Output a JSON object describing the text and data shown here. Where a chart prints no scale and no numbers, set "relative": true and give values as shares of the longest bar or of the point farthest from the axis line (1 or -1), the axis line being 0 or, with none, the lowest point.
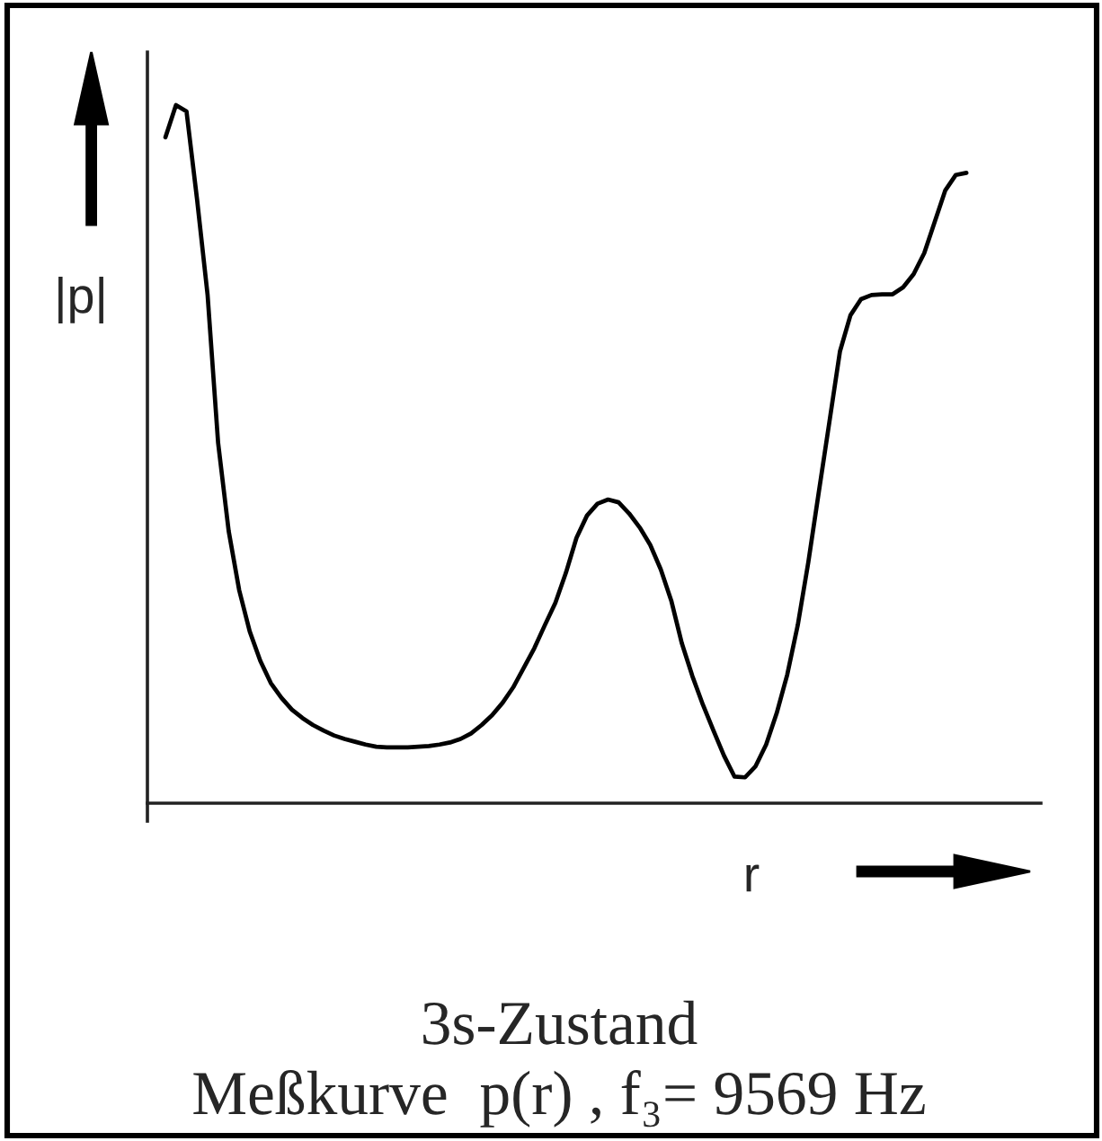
{
  "chart_data": {
    "type": "line",
    "relative": true,
    "title": "3s-Zustand",
    "subtitle": "Meßkurve  p(r) , f₃= 9569 Hz",
    "xlabel": "r",
    "ylabel": "|p|",
    "line_style": "solid",
    "categories": [
      null,
      null,
      null,
      null,
      null,
      null,
      null,
      null,
      null,
      null,
      null,
      null,
      null,
      null,
      null,
      null,
      null,
      null,
      null,
      null,
      null,
      null,
      null,
      null,
      null,
      null,
      null,
      null,
      null,
      null,
      null,
      null,
      null,
      null,
      null,
      null,
      null,
      null,
      null,
      null,
      null,
      null,
      null,
      null,
      null,
      null,
      null,
      null,
      null,
      null,
      null,
      null,
      null,
      null,
      null,
      null,
      null,
      null,
      null,
      null,
      null,
      null,
      null,
      null,
      null,
      null,
      null,
      null,
      null,
      null,
      null,
      null,
      null,
      null,
      null,
      null,
      null
    ],
    "series": [
      {
        "color": "#000000",
        "values": [
          0.954,
          1.0,
          0.991,
          0.865,
          0.728,
          0.516,
          0.39,
          0.305,
          0.246,
          0.204,
          0.172,
          0.151,
          0.134,
          0.122,
          0.112,
          0.104,
          0.097,
          0.092,
          0.088,
          0.084,
          0.081,
          0.08,
          0.08,
          0.08,
          0.081,
          0.082,
          0.084,
          0.087,
          0.092,
          0.1,
          0.112,
          0.126,
          0.144,
          0.166,
          0.194,
          0.222,
          0.255,
          0.287,
          0.33,
          0.38,
          0.412,
          0.429,
          0.435,
          0.431,
          0.415,
          0.395,
          0.37,
          0.335,
          0.29,
          0.229,
          0.182,
          0.141,
          0.104,
          0.068,
          0.038,
          0.037,
          0.053,
          0.084,
          0.129,
          0.184,
          0.255,
          0.345,
          0.446,
          0.546,
          0.647,
          0.699,
          0.722,
          0.728,
          0.729,
          0.729,
          0.739,
          0.758,
          0.788,
          0.833,
          0.878,
          0.9,
          0.903
        ]
      }
    ]
  }
}
